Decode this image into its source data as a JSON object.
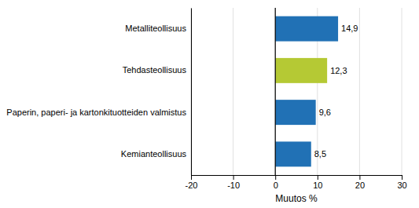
{
  "chart_data": {
    "type": "bar",
    "orientation": "horizontal",
    "categories": [
      "Kemianteollisuus",
      "Paperin, paperi- ja kartonkituotteiden valmistus",
      "Tehdasteollisuus",
      "Metalliteollisuus"
    ],
    "values": [
      8.5,
      9.6,
      12.3,
      14.9
    ],
    "value_labels": [
      "8,5",
      "9,6",
      "12,3",
      "14,9"
    ],
    "colors": [
      "#2171b5",
      "#2171b5",
      "#b5c934",
      "#2171b5"
    ],
    "data_labels": true,
    "xlabel": "Muutos %",
    "xlim": [
      -20,
      30
    ],
    "xticks": [
      -20,
      -10,
      0,
      10,
      20,
      30
    ],
    "grid": true
  }
}
